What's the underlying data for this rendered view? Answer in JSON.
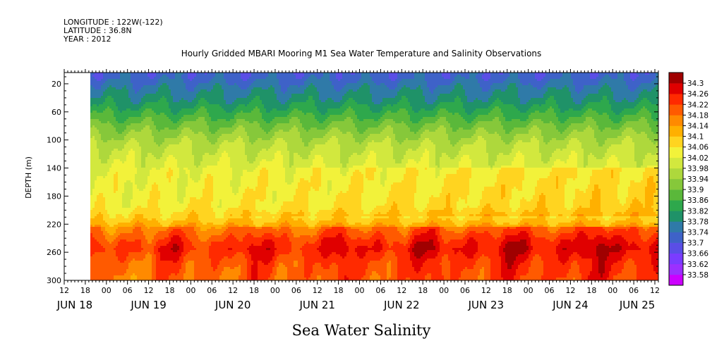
{
  "header": {
    "longitude": "LONGITUDE : 122W(-122)",
    "latitude": "LATITUDE : 36.8N",
    "year": "YEAR : 2012"
  },
  "chart_data": {
    "type": "heatmap",
    "title": "Hourly Gridded MBARI Mooring M1 Sea Water Temperature and Salinity Observations",
    "footer": "Sea Water Salinity",
    "ylabel": "DEPTH (m)",
    "y_ticks": [
      20,
      60,
      100,
      140,
      180,
      220,
      260,
      300
    ],
    "y_tick_labels": [
      "20",
      "60",
      "100",
      "140",
      "180",
      "220",
      "260",
      "300"
    ],
    "ylim": [
      4,
      300
    ],
    "y_inverted": true,
    "x_hour_ticks": [
      {
        "t": 0,
        "label": "12"
      },
      {
        "t": 6,
        "label": "18"
      },
      {
        "t": 12,
        "label": "00"
      },
      {
        "t": 18,
        "label": "06"
      },
      {
        "t": 24,
        "label": "12"
      },
      {
        "t": 30,
        "label": "18"
      },
      {
        "t": 36,
        "label": "00"
      },
      {
        "t": 42,
        "label": "06"
      },
      {
        "t": 48,
        "label": "12"
      },
      {
        "t": 54,
        "label": "18"
      },
      {
        "t": 60,
        "label": "00"
      },
      {
        "t": 66,
        "label": "06"
      },
      {
        "t": 72,
        "label": "12"
      },
      {
        "t": 78,
        "label": "18"
      },
      {
        "t": 84,
        "label": "00"
      },
      {
        "t": 90,
        "label": "06"
      },
      {
        "t": 96,
        "label": "12"
      },
      {
        "t": 102,
        "label": "18"
      },
      {
        "t": 108,
        "label": "00"
      },
      {
        "t": 114,
        "label": "06"
      },
      {
        "t": 120,
        "label": "12"
      },
      {
        "t": 126,
        "label": "18"
      },
      {
        "t": 132,
        "label": "00"
      },
      {
        "t": 138,
        "label": "06"
      },
      {
        "t": 144,
        "label": "12"
      },
      {
        "t": 150,
        "label": "18"
      },
      {
        "t": 156,
        "label": "00"
      },
      {
        "t": 162,
        "label": "06"
      },
      {
        "t": 168,
        "label": "12"
      }
    ],
    "x_date_labels": [
      {
        "t": 3,
        "label": "JUN 18"
      },
      {
        "t": 24,
        "label": "JUN 19"
      },
      {
        "t": 48,
        "label": "JUN 20"
      },
      {
        "t": 72,
        "label": "JUN 21"
      },
      {
        "t": 96,
        "label": "JUN 22"
      },
      {
        "t": 120,
        "label": "JUN 23"
      },
      {
        "t": 144,
        "label": "JUN 24"
      },
      {
        "t": 163,
        "label": "JUN 25"
      }
    ],
    "colorbar": {
      "levels": [
        33.58,
        33.62,
        33.66,
        33.7,
        33.74,
        33.78,
        33.82,
        33.86,
        33.9,
        33.94,
        33.98,
        34.02,
        34.06,
        34.1,
        34.14,
        34.18,
        34.22,
        34.26,
        34.3
      ],
      "labels": [
        "33.58",
        "33.62",
        "33.66",
        "33.7",
        "33.74",
        "33.78",
        "33.82",
        "33.86",
        "33.9",
        "33.94",
        "33.98",
        "34.02",
        "34.06",
        "34.1",
        "34.14",
        "34.18",
        "34.22",
        "34.26",
        "34.3"
      ],
      "colors": [
        "#cc00ff",
        "#9b30ff",
        "#7a3cff",
        "#5a4ee6",
        "#3e62c8",
        "#2f7aa8",
        "#1f9268",
        "#2ea84c",
        "#5ab83a",
        "#86c83a",
        "#aed83c",
        "#d2e83e",
        "#f2f23a",
        "#ffd420",
        "#ffb000",
        "#ff8a00",
        "#ff5a00",
        "#ff2a00",
        "#e00000",
        "#a00000"
      ]
    },
    "salinity_profile": [
      {
        "depth": 10,
        "value": 33.72
      },
      {
        "depth": 25,
        "value": 33.76
      },
      {
        "depth": 45,
        "value": 33.8
      },
      {
        "depth": 65,
        "value": 33.86
      },
      {
        "depth": 85,
        "value": 33.92
      },
      {
        "depth": 105,
        "value": 33.97
      },
      {
        "depth": 125,
        "value": 34.0
      },
      {
        "depth": 145,
        "value": 34.02
      },
      {
        "depth": 170,
        "value": 34.03
      },
      {
        "depth": 195,
        "value": 34.04
      },
      {
        "depth": 210,
        "value": 34.08
      },
      {
        "depth": 225,
        "value": 34.14
      },
      {
        "depth": 245,
        "value": 34.2
      },
      {
        "depth": 255,
        "value": 34.22
      },
      {
        "depth": 275,
        "value": 34.18
      },
      {
        "depth": 300,
        "value": 34.16
      }
    ]
  }
}
